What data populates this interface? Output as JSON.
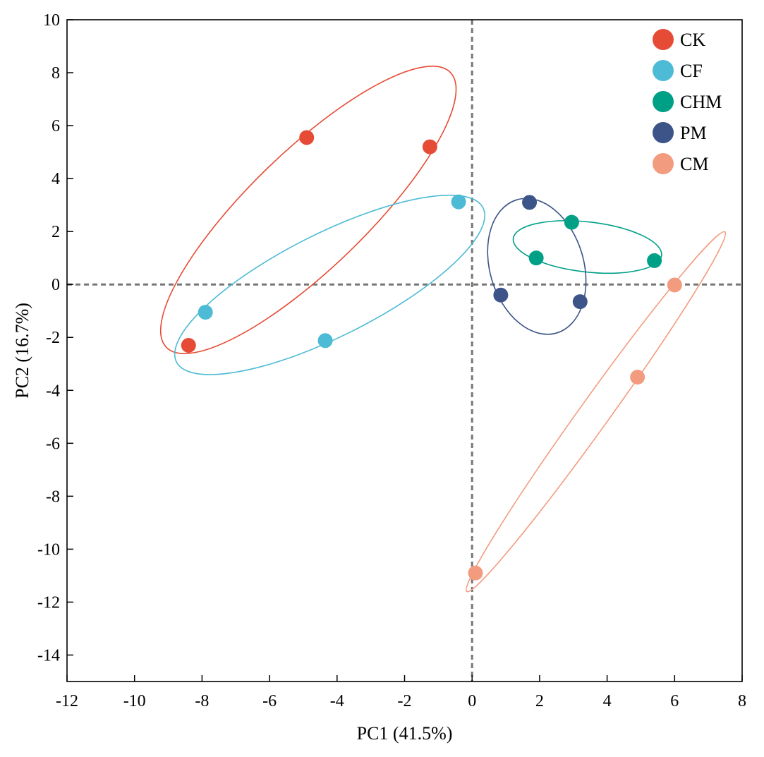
{
  "chart_data": {
    "type": "scatter",
    "title": "",
    "xlabel": "PC1 (41.5%)",
    "ylabel": "PC2 (16.7%)",
    "xlim": [
      -12,
      8
    ],
    "ylim": [
      -15,
      10
    ],
    "xticks": [
      -12,
      -10,
      -8,
      -6,
      -4,
      -2,
      0,
      2,
      4,
      6,
      8
    ],
    "yticks": [
      10,
      8,
      6,
      4,
      2,
      0,
      -2,
      -4,
      -6,
      -8,
      -10,
      -12,
      -14
    ],
    "reference_lines": {
      "x": 0,
      "y": 0,
      "style": "dashed"
    },
    "legend_position": "top-right",
    "series": [
      {
        "name": "CK",
        "color": "#e64b35",
        "points": [
          [
            -4.9,
            5.55
          ],
          [
            -1.25,
            5.2
          ],
          [
            -8.4,
            -2.3
          ]
        ]
      },
      {
        "name": "CF",
        "color": "#4dbbd5",
        "points": [
          [
            -0.4,
            3.12
          ],
          [
            -7.9,
            -1.05
          ],
          [
            -4.35,
            -2.12
          ]
        ]
      },
      {
        "name": "CHM",
        "color": "#00a087",
        "points": [
          [
            2.95,
            2.35
          ],
          [
            1.9,
            1.0
          ],
          [
            5.4,
            0.9
          ]
        ]
      },
      {
        "name": "PM",
        "color": "#3c5488",
        "points": [
          [
            1.7,
            3.1
          ],
          [
            0.85,
            -0.4
          ],
          [
            3.2,
            -0.65
          ]
        ]
      },
      {
        "name": "CM",
        "color": "#f39b7f",
        "points": [
          [
            6.0,
            -0.02
          ],
          [
            4.9,
            -3.5
          ],
          [
            0.1,
            -10.9
          ]
        ]
      }
    ]
  }
}
